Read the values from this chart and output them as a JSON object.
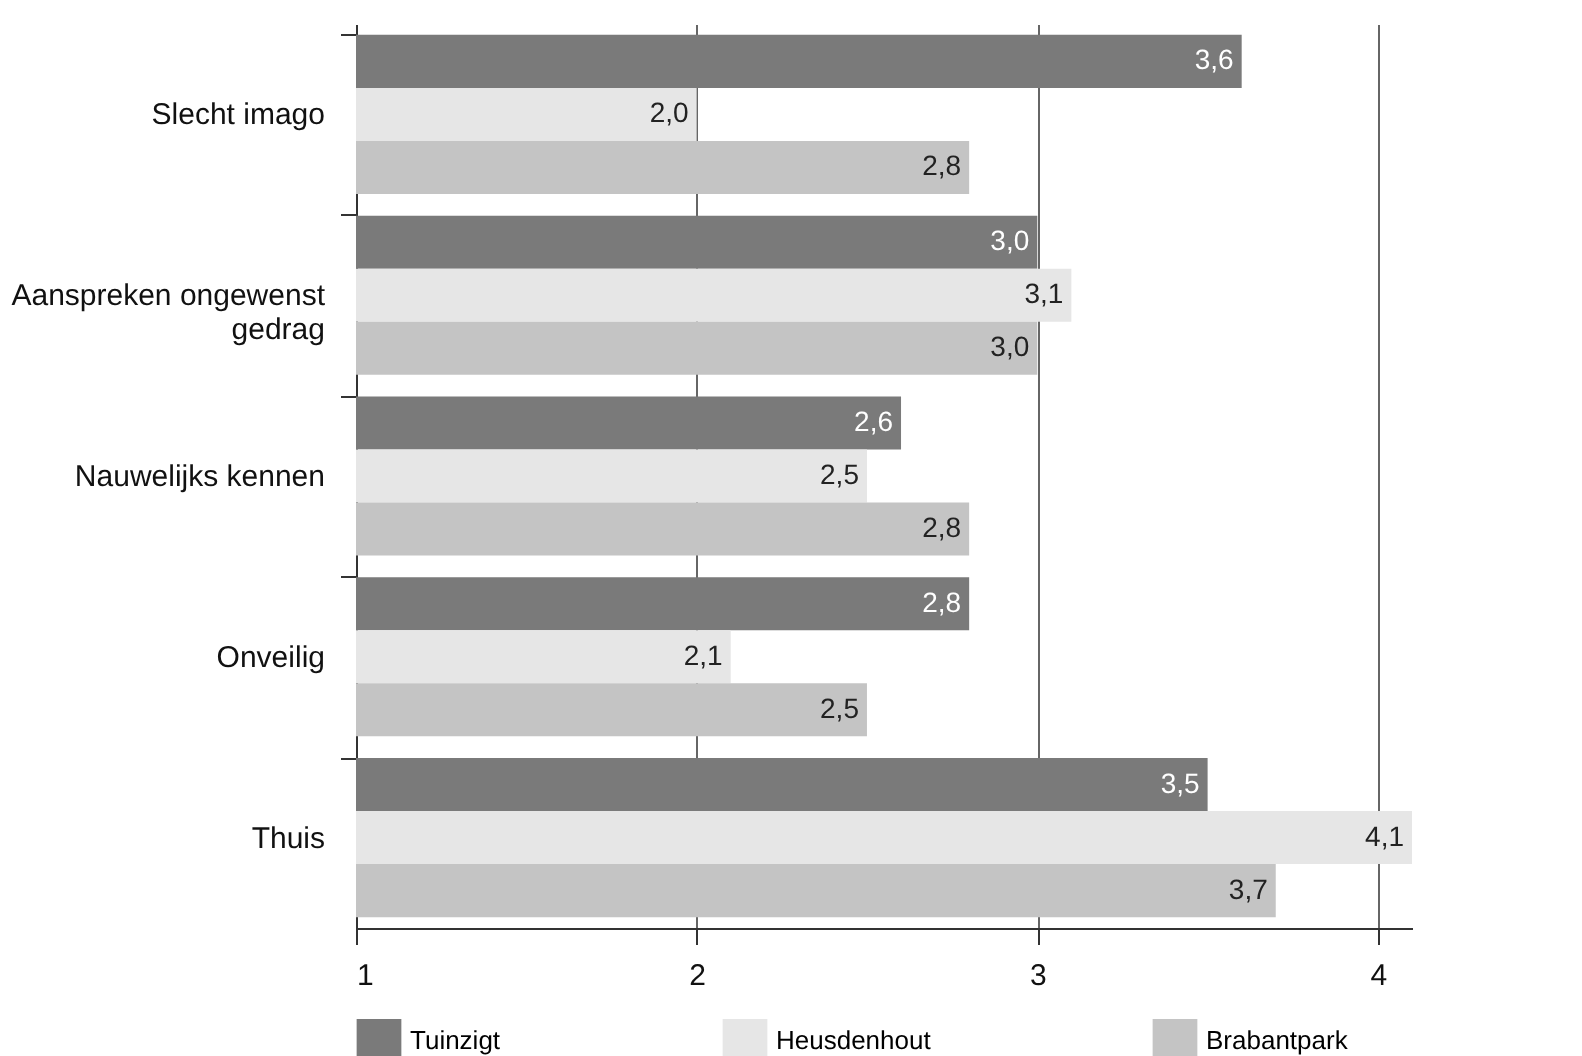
{
  "chart_data": {
    "type": "bar",
    "orientation": "horizontal",
    "categories": [
      "Slecht imago",
      "Aanspreken ongewenst gedrag",
      "Nauwelijks kennen",
      "Onveilig",
      "Thuis"
    ],
    "series": [
      {
        "name": "Tuinzigt",
        "color": "#7a7a7a",
        "values": [
          3.6,
          3.0,
          2.6,
          2.8,
          3.5
        ],
        "value_labels": [
          "3,6",
          "3,0",
          "2,6",
          "2,8",
          "3,5"
        ]
      },
      {
        "name": "Heusdenhout",
        "color": "#e6e6e6",
        "values": [
          2.0,
          3.1,
          2.5,
          2.1,
          4.1
        ],
        "value_labels": [
          "2,0",
          "3,1",
          "2,5",
          "2,1",
          "4,1"
        ]
      },
      {
        "name": "Brabantpark",
        "color": "#c4c4c4",
        "values": [
          2.8,
          3.0,
          2.8,
          2.5,
          3.7
        ],
        "value_labels": [
          "2,8",
          "3,0",
          "2,8",
          "2,5",
          "3,7"
        ]
      }
    ],
    "xlim": [
      1,
      4.1
    ],
    "xticks": [
      1,
      2,
      3,
      4
    ],
    "grid": "x",
    "legend": "bottom"
  }
}
